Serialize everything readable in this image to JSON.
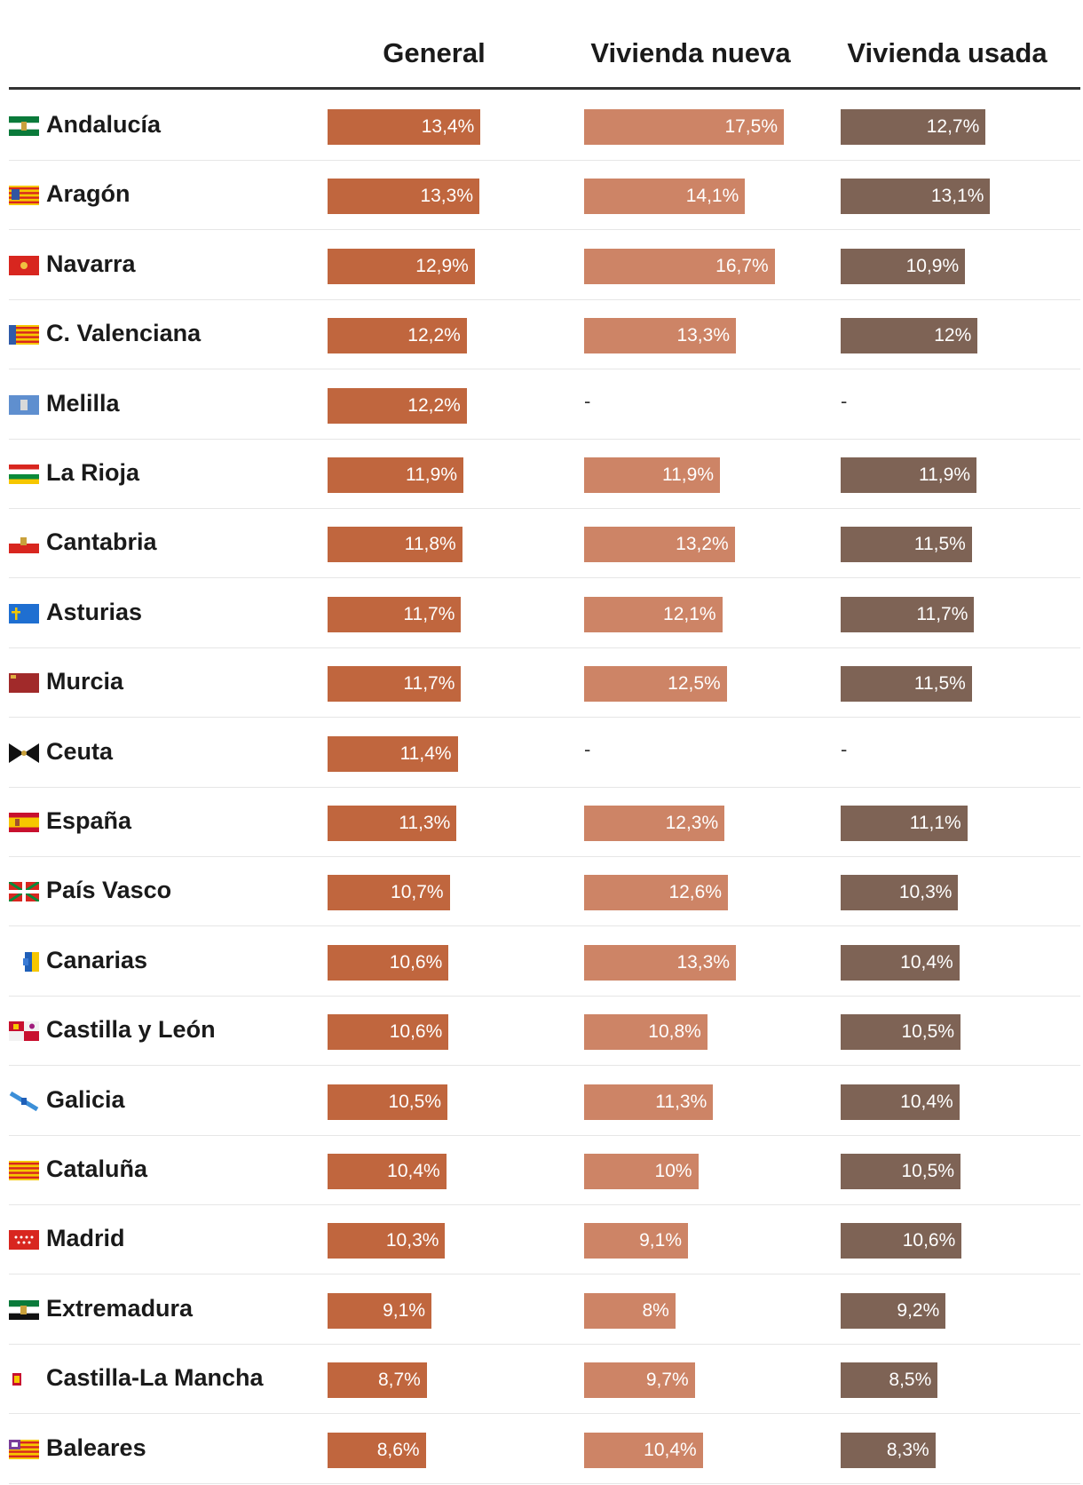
{
  "chart_data": {
    "type": "bar",
    "headers": [
      "General",
      "Vivienda nueva",
      "Vivienda usada"
    ],
    "colors": [
      "#c0663e",
      "#cd8466",
      "#7e6355"
    ],
    "xlim": [
      0,
      17.5
    ],
    "rows": [
      {
        "region": "Andalucía",
        "flag": "andalucia-flag-icon",
        "values": [
          13.4,
          17.5,
          12.7
        ],
        "labels": [
          "13,4%",
          "17,5%",
          "12,7%"
        ]
      },
      {
        "region": "Aragón",
        "flag": "aragon-flag-icon",
        "values": [
          13.3,
          14.1,
          13.1
        ],
        "labels": [
          "13,3%",
          "14,1%",
          "13,1%"
        ]
      },
      {
        "region": "Navarra",
        "flag": "navarra-flag-icon",
        "values": [
          12.9,
          16.7,
          10.9
        ],
        "labels": [
          "12,9%",
          "16,7%",
          "10,9%"
        ]
      },
      {
        "region": "C. Valenciana",
        "flag": "valencia-flag-icon",
        "values": [
          12.2,
          13.3,
          12
        ],
        "labels": [
          "12,2%",
          "13,3%",
          "12%"
        ]
      },
      {
        "region": "Melilla",
        "flag": "melilla-flag-icon",
        "values": [
          12.2,
          null,
          null
        ],
        "labels": [
          "12,2%",
          "-",
          "-"
        ]
      },
      {
        "region": "La Rioja",
        "flag": "la-rioja-flag-icon",
        "values": [
          11.9,
          11.9,
          11.9
        ],
        "labels": [
          "11,9%",
          "11,9%",
          "11,9%"
        ]
      },
      {
        "region": "Cantabria",
        "flag": "cantabria-flag-icon",
        "values": [
          11.8,
          13.2,
          11.5
        ],
        "labels": [
          "11,8%",
          "13,2%",
          "11,5%"
        ]
      },
      {
        "region": "Asturias",
        "flag": "asturias-flag-icon",
        "values": [
          11.7,
          12.1,
          11.7
        ],
        "labels": [
          "11,7%",
          "12,1%",
          "11,7%"
        ]
      },
      {
        "region": "Murcia",
        "flag": "murcia-flag-icon",
        "values": [
          11.7,
          12.5,
          11.5
        ],
        "labels": [
          "11,7%",
          "12,5%",
          "11,5%"
        ]
      },
      {
        "region": "Ceuta",
        "flag": "ceuta-flag-icon",
        "values": [
          11.4,
          null,
          null
        ],
        "labels": [
          "11,4%",
          "-",
          "-"
        ]
      },
      {
        "region": "España",
        "flag": "espana-flag-icon",
        "values": [
          11.3,
          12.3,
          11.1
        ],
        "labels": [
          "11,3%",
          "12,3%",
          "11,1%"
        ]
      },
      {
        "region": "País Vasco",
        "flag": "pais-vasco-flag-icon",
        "values": [
          10.7,
          12.6,
          10.3
        ],
        "labels": [
          "10,7%",
          "12,6%",
          "10,3%"
        ]
      },
      {
        "region": "Canarias",
        "flag": "canarias-flag-icon",
        "values": [
          10.6,
          13.3,
          10.4
        ],
        "labels": [
          "10,6%",
          "13,3%",
          "10,4%"
        ]
      },
      {
        "region": "Castilla y León",
        "flag": "castilla-leon-flag-icon",
        "values": [
          10.6,
          10.8,
          10.5
        ],
        "labels": [
          "10,6%",
          "10,8%",
          "10,5%"
        ]
      },
      {
        "region": "Galicia",
        "flag": "galicia-flag-icon",
        "values": [
          10.5,
          11.3,
          10.4
        ],
        "labels": [
          "10,5%",
          "11,3%",
          "10,4%"
        ]
      },
      {
        "region": "Cataluña",
        "flag": "cataluna-flag-icon",
        "values": [
          10.4,
          10,
          10.5
        ],
        "labels": [
          "10,4%",
          "10%",
          "10,5%"
        ]
      },
      {
        "region": "Madrid",
        "flag": "madrid-flag-icon",
        "values": [
          10.3,
          9.1,
          10.6
        ],
        "labels": [
          "10,3%",
          "9,1%",
          "10,6%"
        ]
      },
      {
        "region": "Extremadura",
        "flag": "extremadura-flag-icon",
        "values": [
          9.1,
          8,
          9.2
        ],
        "labels": [
          "9,1%",
          "8%",
          "9,2%"
        ]
      },
      {
        "region": "Castilla-La Mancha",
        "flag": "castilla-la-mancha-flag-icon",
        "values": [
          8.7,
          9.7,
          8.5
        ],
        "labels": [
          "8,7%",
          "9,7%",
          "8,5%"
        ]
      },
      {
        "region": "Baleares",
        "flag": "baleares-flag-icon",
        "values": [
          8.6,
          10.4,
          8.3
        ],
        "labels": [
          "8,6%",
          "10,4%",
          "8,3%"
        ]
      }
    ]
  }
}
